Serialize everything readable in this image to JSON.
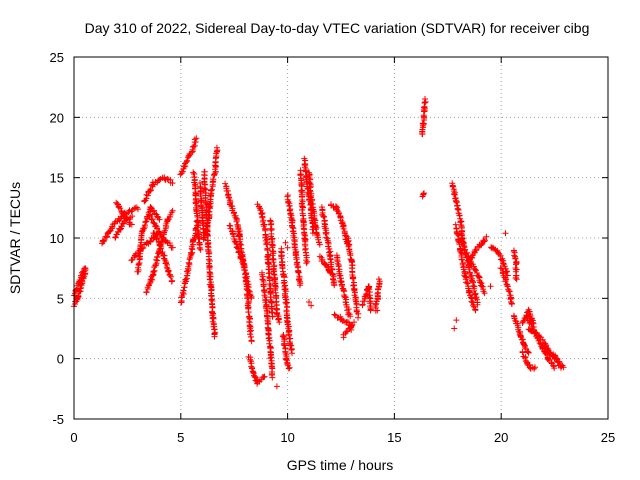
{
  "chart_data": {
    "type": "scatter",
    "title": "Day 310 of 2022, Sidereal Day-to-day VTEC variation (SDTVAR) for receiver cibg",
    "xlabel": "GPS time / hours",
    "ylabel": "SDTVAR / TECUs",
    "xlim": [
      0,
      25
    ],
    "ylim": [
      -5,
      25
    ],
    "x_ticks": [
      0,
      5,
      10,
      15,
      20,
      25
    ],
    "y_ticks": [
      -5,
      0,
      5,
      10,
      15,
      20,
      25
    ],
    "grid": true,
    "marker": "+",
    "color": "#ff0000",
    "tracks": [
      [
        [
          0.0,
          4.3
        ],
        [
          0.2,
          5.2
        ],
        [
          0.4,
          6.4
        ],
        [
          0.55,
          7.3
        ]
      ],
      [
        [
          0.0,
          5.2
        ],
        [
          0.2,
          6.2
        ],
        [
          0.4,
          7.0
        ],
        [
          0.55,
          7.6
        ]
      ],
      [
        [
          1.3,
          9.5
        ],
        [
          1.8,
          11.0
        ],
        [
          2.4,
          12.0
        ],
        [
          3.0,
          12.5
        ]
      ],
      [
        [
          1.9,
          10.0
        ],
        [
          2.3,
          11.2
        ],
        [
          2.7,
          11.8
        ]
      ],
      [
        [
          2.0,
          13.0
        ],
        [
          2.3,
          12.0
        ],
        [
          2.7,
          11.0
        ]
      ],
      [
        [
          2.7,
          8.2
        ],
        [
          3.1,
          9.0
        ],
        [
          3.6,
          9.8
        ],
        [
          4.0,
          10.6
        ]
      ],
      [
        [
          3.0,
          7.2
        ],
        [
          3.2,
          10.5
        ],
        [
          3.6,
          12.5
        ],
        [
          4.0,
          11.5
        ]
      ],
      [
        [
          3.3,
          13.0
        ],
        [
          3.7,
          14.5
        ],
        [
          4.2,
          15.0
        ],
        [
          4.6,
          14.6
        ]
      ],
      [
        [
          3.5,
          12.0
        ],
        [
          3.8,
          11.0
        ],
        [
          4.2,
          10.0
        ],
        [
          4.6,
          9.2
        ]
      ],
      [
        [
          3.4,
          5.5
        ],
        [
          3.7,
          7.0
        ],
        [
          4.0,
          9.0
        ],
        [
          4.4,
          11.5
        ],
        [
          4.6,
          12.2
        ]
      ],
      [
        [
          3.7,
          10.5
        ],
        [
          4.0,
          9.5
        ],
        [
          4.3,
          8.0
        ],
        [
          4.6,
          6.3
        ]
      ],
      [
        [
          5.0,
          4.6
        ],
        [
          5.3,
          7.0
        ],
        [
          5.6,
          9.8
        ],
        [
          5.8,
          11.5
        ]
      ],
      [
        [
          5.0,
          15.2
        ],
        [
          5.3,
          16.5
        ],
        [
          5.6,
          17.5
        ],
        [
          5.7,
          18.2
        ]
      ],
      [
        [
          5.6,
          15.5
        ],
        [
          5.7,
          13.5
        ],
        [
          5.8,
          11.0
        ],
        [
          5.9,
          9.0
        ]
      ],
      [
        [
          5.9,
          14.5
        ],
        [
          6.0,
          12.0
        ],
        [
          6.1,
          10.0
        ],
        [
          6.3,
          11.5
        ],
        [
          6.4,
          13.5
        ],
        [
          6.6,
          15.5
        ],
        [
          6.7,
          17.5
        ]
      ],
      [
        [
          6.1,
          15.5
        ],
        [
          6.2,
          12.0
        ],
        [
          6.3,
          9.0
        ],
        [
          6.4,
          6.0
        ],
        [
          6.5,
          3.5
        ],
        [
          6.6,
          1.8
        ]
      ],
      [
        [
          7.1,
          14.5
        ],
        [
          7.3,
          13.0
        ],
        [
          7.6,
          11.5
        ],
        [
          7.8,
          10.0
        ]
      ],
      [
        [
          7.3,
          11.0
        ],
        [
          7.6,
          9.5
        ],
        [
          7.9,
          8.0
        ],
        [
          8.1,
          6.5
        ],
        [
          8.3,
          5.0
        ]
      ],
      [
        [
          7.7,
          10.5
        ],
        [
          7.9,
          8.5
        ],
        [
          8.1,
          6.0
        ],
        [
          8.2,
          3.5
        ],
        [
          8.3,
          1.5
        ]
      ],
      [
        [
          8.2,
          0.2
        ],
        [
          8.4,
          -1.2
        ],
        [
          8.6,
          -2.0
        ],
        [
          8.9,
          -1.5
        ]
      ],
      [
        [
          8.6,
          12.8
        ],
        [
          8.8,
          12.0
        ],
        [
          9.0,
          10.0
        ],
        [
          9.1,
          8.0
        ],
        [
          9.2,
          5.5
        ],
        [
          9.3,
          3.5
        ]
      ],
      [
        [
          8.8,
          7.0
        ],
        [
          9.0,
          4.5
        ],
        [
          9.1,
          2.5
        ],
        [
          9.2,
          0.5
        ],
        [
          9.3,
          -1.5
        ]
      ],
      [
        [
          9.2,
          11.5
        ],
        [
          9.3,
          9.0
        ],
        [
          9.4,
          6.5
        ],
        [
          9.5,
          4.0
        ],
        [
          9.6,
          3.0
        ]
      ],
      [
        [
          9.7,
          9.0
        ],
        [
          9.8,
          7.0
        ],
        [
          9.9,
          5.5
        ],
        [
          10.0,
          3.0
        ],
        [
          10.2,
          0.5
        ]
      ],
      [
        [
          9.8,
          2.0
        ],
        [
          9.9,
          0.5
        ],
        [
          10.0,
          -0.5
        ],
        [
          10.1,
          -0.8
        ]
      ],
      [
        [
          10.0,
          13.5
        ],
        [
          10.2,
          11.5
        ],
        [
          10.4,
          8.5
        ],
        [
          10.6,
          6.0
        ]
      ],
      [
        [
          10.6,
          15.5
        ],
        [
          10.7,
          12.5
        ],
        [
          10.8,
          10.0
        ],
        [
          10.9,
          8.0
        ]
      ],
      [
        [
          10.8,
          16.5
        ],
        [
          10.9,
          14.5
        ],
        [
          11.1,
          12.5
        ],
        [
          11.2,
          10.5
        ]
      ],
      [
        [
          11.0,
          15.5
        ],
        [
          11.1,
          13.5
        ],
        [
          11.3,
          11.0
        ],
        [
          11.5,
          9.5
        ]
      ],
      [
        [
          11.5,
          8.5
        ],
        [
          11.7,
          8.0
        ],
        [
          11.9,
          7.5
        ],
        [
          12.0,
          7.0
        ]
      ],
      [
        [
          11.6,
          12.5
        ],
        [
          11.8,
          10.5
        ],
        [
          12.0,
          8.5
        ],
        [
          12.2,
          6.0
        ]
      ],
      [
        [
          12.0,
          12.8
        ],
        [
          12.3,
          12.5
        ],
        [
          12.6,
          11.0
        ],
        [
          12.8,
          9.5
        ]
      ],
      [
        [
          12.8,
          10.0
        ],
        [
          13.0,
          8.0
        ],
        [
          13.1,
          6.0
        ],
        [
          13.3,
          3.5
        ]
      ],
      [
        [
          12.3,
          8.5
        ],
        [
          12.5,
          6.5
        ],
        [
          12.7,
          5.0
        ],
        [
          12.9,
          3.5
        ]
      ],
      [
        [
          12.2,
          3.6
        ],
        [
          12.5,
          3.3
        ],
        [
          12.8,
          3.0
        ],
        [
          13.0,
          2.5
        ]
      ],
      [
        [
          12.6,
          1.8
        ],
        [
          12.9,
          2.5
        ],
        [
          13.1,
          3.0
        ]
      ],
      [
        [
          13.5,
          4.5
        ],
        [
          13.7,
          5.5
        ],
        [
          13.8,
          6.0
        ],
        [
          13.9,
          4.0
        ]
      ],
      [
        [
          14.1,
          4.0
        ],
        [
          14.2,
          5.0
        ],
        [
          14.3,
          6.5
        ]
      ],
      [
        [
          16.3,
          18.5
        ],
        [
          16.35,
          19.5
        ],
        [
          16.4,
          20.5
        ],
        [
          16.45,
          21.5
        ]
      ],
      [
        [
          16.3,
          13.5
        ],
        [
          16.4,
          13.7
        ]
      ],
      [
        [
          17.7,
          14.5
        ],
        [
          17.9,
          13.0
        ],
        [
          18.1,
          11.5
        ],
        [
          18.2,
          9.5
        ]
      ],
      [
        [
          17.9,
          11.0
        ],
        [
          18.1,
          9.0
        ],
        [
          18.3,
          7.0
        ],
        [
          18.5,
          5.5
        ],
        [
          18.8,
          4.0
        ]
      ],
      [
        [
          18.1,
          10.5
        ],
        [
          18.3,
          9.0
        ],
        [
          18.5,
          7.5
        ],
        [
          18.7,
          6.0
        ],
        [
          18.9,
          4.5
        ]
      ],
      [
        [
          18.3,
          9.0
        ],
        [
          18.6,
          8.0
        ],
        [
          18.9,
          7.0
        ],
        [
          19.2,
          5.5
        ]
      ],
      [
        [
          18.5,
          8.0
        ],
        [
          18.8,
          9.0
        ],
        [
          19.1,
          9.5
        ],
        [
          19.3,
          10.0
        ]
      ],
      [
        [
          19.5,
          9.3
        ],
        [
          19.8,
          9.0
        ],
        [
          20.1,
          8.0
        ],
        [
          20.3,
          7.0
        ]
      ],
      [
        [
          20.0,
          7.5
        ],
        [
          20.2,
          6.5
        ],
        [
          20.4,
          5.5
        ],
        [
          20.5,
          4.5
        ]
      ],
      [
        [
          20.6,
          9.0
        ],
        [
          20.7,
          8.0
        ],
        [
          20.7,
          6.5
        ]
      ],
      [
        [
          20.6,
          3.5
        ],
        [
          20.9,
          2.0
        ],
        [
          21.1,
          1.0
        ],
        [
          21.3,
          0.5
        ]
      ],
      [
        [
          21.0,
          0.5
        ],
        [
          21.2,
          -0.3
        ],
        [
          21.4,
          -0.8
        ],
        [
          21.6,
          -0.7
        ]
      ],
      [
        [
          21.3,
          2.5
        ],
        [
          21.6,
          2.0
        ],
        [
          21.9,
          1.0
        ],
        [
          22.2,
          0.0
        ],
        [
          22.5,
          -0.8
        ]
      ],
      [
        [
          21.2,
          3.5
        ],
        [
          21.5,
          2.5
        ],
        [
          21.8,
          1.8
        ],
        [
          22.1,
          1.0
        ],
        [
          22.4,
          0.2
        ],
        [
          22.8,
          -0.7
        ]
      ],
      [
        [
          21.0,
          3.0
        ],
        [
          21.3,
          4.0
        ],
        [
          21.5,
          2.8
        ]
      ],
      [
        [
          22.0,
          1.2
        ],
        [
          22.3,
          0.5
        ],
        [
          22.6,
          0.0
        ],
        [
          22.9,
          -0.7
        ]
      ]
    ],
    "isolated_points": [
      [
        20.2,
        10.4
      ],
      [
        19.5,
        6.0
      ],
      [
        17.9,
        3.2
      ],
      [
        17.8,
        2.5
      ],
      [
        9.5,
        -2.3
      ],
      [
        8.5,
        -1.8
      ],
      [
        11.0,
        4.7
      ],
      [
        11.1,
        4.4
      ],
      [
        9.9,
        9.6
      ],
      [
        10.0,
        9.2
      ],
      [
        14.2,
        4.0
      ]
    ]
  }
}
